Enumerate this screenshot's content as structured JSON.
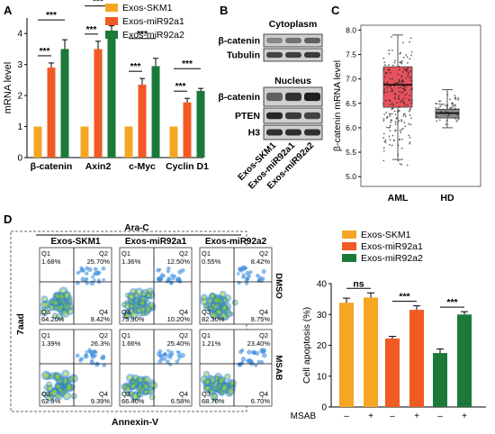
{
  "panel_labels": [
    "A",
    "B",
    "C",
    "D"
  ],
  "chart_data": [
    {
      "panel": "A",
      "type": "bar",
      "ylabel": "mRNA level",
      "categories": [
        "β-catenin",
        "Axin2",
        "c-Myc",
        "Cyclin D1"
      ],
      "ylim": [
        0,
        4.5
      ],
      "yticks": [
        0,
        1,
        2,
        3,
        4
      ],
      "series": [
        {
          "name": "Exos-SKM1",
          "color": "#f5a623",
          "values": [
            1,
            1,
            1,
            1
          ],
          "errors": [
            0,
            0,
            0,
            0
          ]
        },
        {
          "name": "Exos-miR92a1",
          "color": "#f15a22",
          "values": [
            2.9,
            3.5,
            2.35,
            1.78
          ],
          "errors": [
            0.15,
            0.25,
            0.2,
            0.13
          ]
        },
        {
          "name": "Exos-miR92a2",
          "color": "#1b7a3a",
          "values": [
            3.5,
            4.0,
            2.95,
            2.15
          ],
          "errors": [
            0.3,
            0.25,
            0.25,
            0.08
          ]
        }
      ],
      "significance": [
        "***",
        "***",
        "***",
        "***",
        "***",
        "***",
        "***",
        "***"
      ]
    },
    {
      "panel": "C",
      "type": "scatter",
      "ylabel": "β-catenin mRNA level",
      "categories": [
        "AML",
        "HD"
      ],
      "ylim": [
        4.8,
        8.1
      ],
      "yticks": [
        5.0,
        5.5,
        6.0,
        6.5,
        7.0,
        7.5,
        8.0
      ],
      "ytick_labels": [
        "5.0",
        "5.5",
        "6.0",
        "6.5",
        "7.0",
        "7.5",
        "8.0"
      ],
      "box": [
        {
          "group": "AML",
          "color": "#e8525c",
          "q1": 6.42,
          "median": 6.88,
          "q3": 7.25,
          "whisker_low": 5.35,
          "whisker_high": 7.9
        },
        {
          "group": "HD",
          "color": "#888888",
          "q1": 6.2,
          "median": 6.3,
          "q3": 6.38,
          "whisker_low": 6.0,
          "whisker_high": 6.78
        }
      ]
    },
    {
      "panel": "D-bar",
      "type": "bar",
      "ylabel": "Cell apoptosis (%)",
      "xlabel": "MSAB",
      "ylim": [
        0,
        40
      ],
      "yticks": [
        0,
        10,
        20,
        30,
        40
      ],
      "groups": [
        {
          "name": "Exos-SKM1",
          "color": "#f5a623",
          "values": [
            33.8,
            35.5
          ],
          "errors": [
            1.5,
            1.5
          ]
        },
        {
          "name": "Exos-miR92a1",
          "color": "#f15a22",
          "values": [
            22.2,
            31.5
          ],
          "errors": [
            0.7,
            1.3
          ]
        },
        {
          "name": "Exos-miR92a2",
          "color": "#1b7a3a",
          "values": [
            17.5,
            30.0
          ],
          "errors": [
            1.3,
            0.9
          ]
        }
      ],
      "msab_labels": [
        "–",
        "+",
        "–",
        "+",
        "–",
        "+"
      ],
      "significance": [
        "ns",
        "***",
        "***"
      ]
    }
  ],
  "western": {
    "cytoplasm_title": "Cytoplasm",
    "nucleus_title": "Nucleus",
    "cyto_rows": [
      "β-catenin",
      "Tubulin"
    ],
    "nuc_rows": [
      "β-catenin",
      "PTEN",
      "H3"
    ],
    "lanes": [
      "Exos-SKM1",
      "Exos-miR92a1",
      "Exos-miR92a2"
    ]
  },
  "flow": {
    "treatment_label": "Ara-C",
    "columns": [
      "Exos-SKM1",
      "Exos-miR92a1",
      "Exos-miR92a2"
    ],
    "rows": [
      "DMSO",
      "MSAB"
    ],
    "ylabel": "7aad",
    "xlabel": "Annexin-V",
    "quadrant_names": [
      "Q1",
      "Q2",
      "Q3",
      "Q4"
    ],
    "cells": [
      [
        {
          "q1": "1.68%",
          "q2": "25.70%",
          "q3": "64.20%",
          "q4": "8.42%"
        },
        {
          "q1": "1.36%",
          "q2": "12.50%",
          "q3": "75.90%",
          "q4": "10.20%"
        },
        {
          "q1": "0.55%",
          "q2": "8.42%",
          "q3": "82.30%",
          "q4": "8.75%"
        }
      ],
      [
        {
          "q1": "1.39%",
          "q2": "26.3%",
          "q3": "62.9%",
          "q4": "9.39%"
        },
        {
          "q1": "1.66%",
          "q2": "25.40%",
          "q3": "66.40%",
          "q4": "6.58%"
        },
        {
          "q1": "1.21%",
          "q2": "23.40%",
          "q3": "68.70%",
          "q4": "6.70%"
        }
      ]
    ]
  }
}
